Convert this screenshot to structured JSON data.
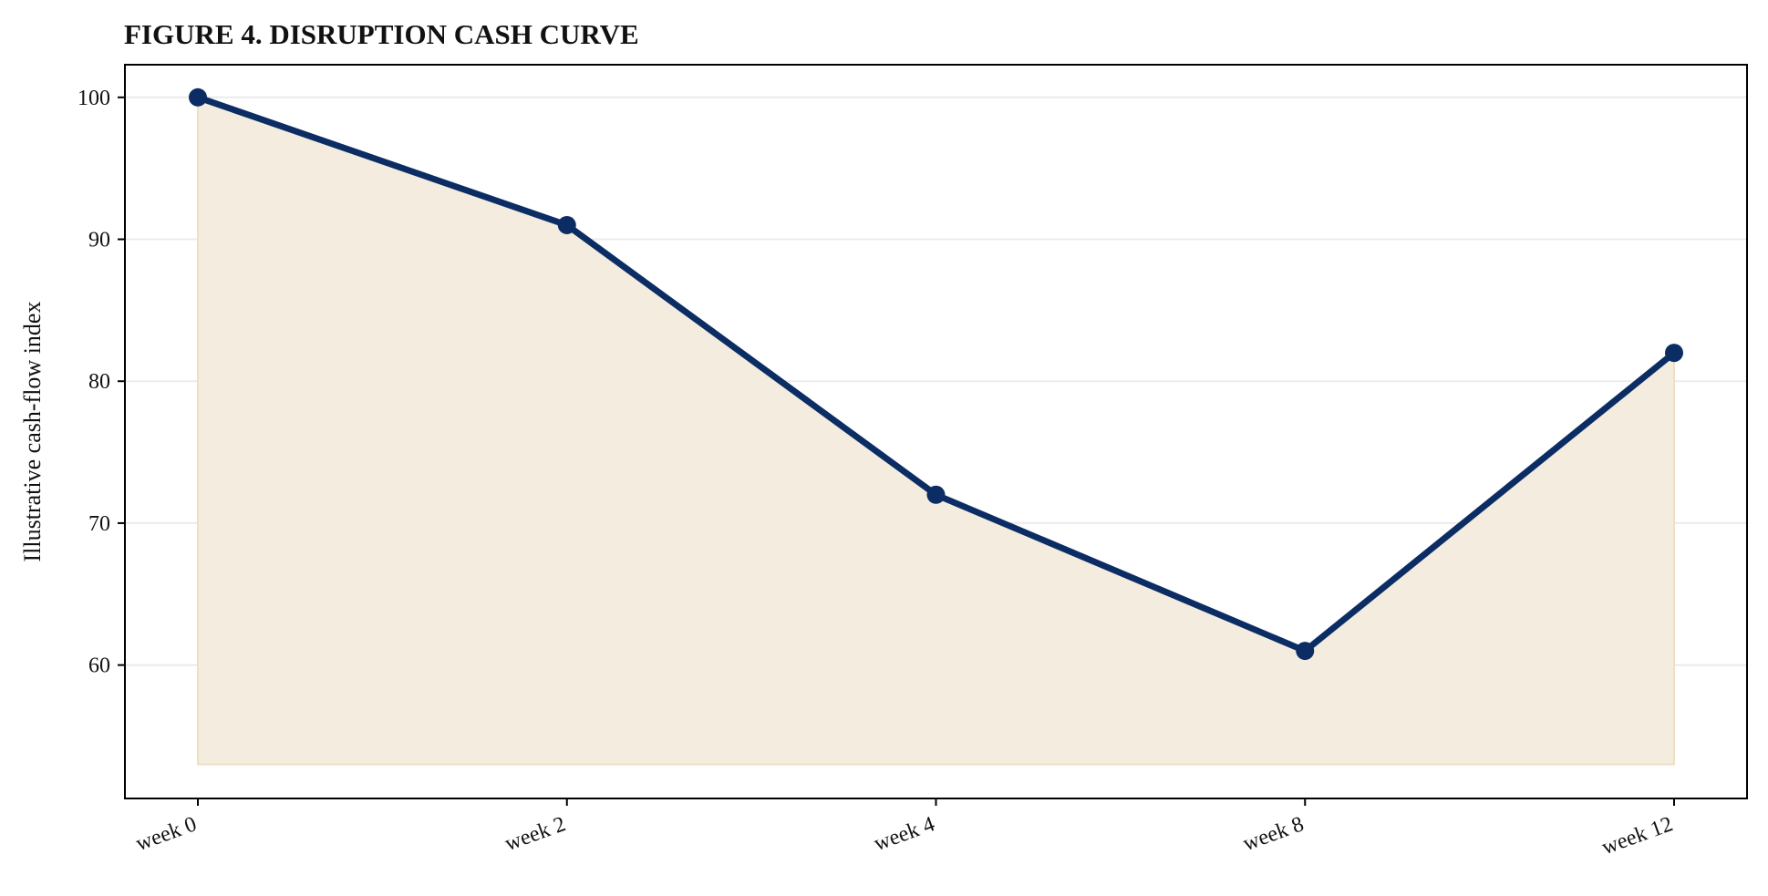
{
  "chart_data": {
    "type": "area",
    "title": "FIGURE 4. DISRUPTION CASH CURVE",
    "xlabel": "",
    "ylabel": "Illustrative cash-flow index",
    "categories": [
      "week 0",
      "week 2",
      "week 4",
      "week 8",
      "week 12"
    ],
    "series": [
      {
        "values": [
          100,
          91,
          72,
          61,
          82
        ]
      }
    ],
    "fill_baseline": 53,
    "ylim": [
      50.6,
      102.3
    ],
    "yticks": [
      60,
      70,
      80,
      90,
      100
    ],
    "grid": "horizontal",
    "legend": "none",
    "colors": {
      "line": "#0b2d64",
      "fill": "#f4ecdf",
      "fill_edge": "#efdfc4",
      "grid": "#ebebeb",
      "axis": "#000000"
    }
  }
}
